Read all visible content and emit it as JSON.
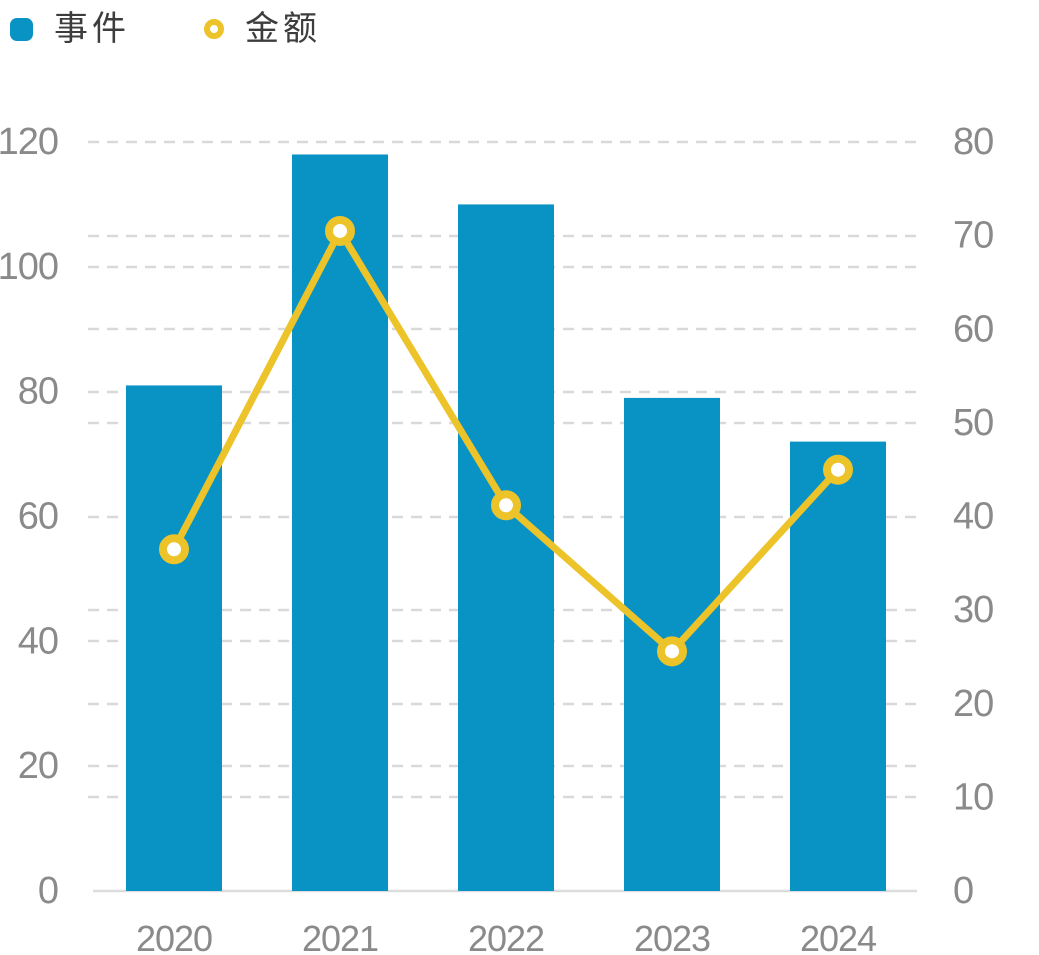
{
  "legend": {
    "items": [
      {
        "label": "事件",
        "series_type": "bar"
      },
      {
        "label": "金额",
        "series_type": "line"
      }
    ]
  },
  "chart_data": {
    "type": "bar",
    "subtype": "combo-bar-line-dual-axis",
    "categories": [
      "2020",
      "2021",
      "2022",
      "2023",
      "2024"
    ],
    "series": [
      {
        "name": "事件",
        "type": "bar",
        "axis": "left",
        "values": [
          81,
          118,
          110,
          79,
          72
        ]
      },
      {
        "name": "金额",
        "type": "line",
        "axis": "right",
        "values": [
          36.5,
          70.5,
          41.2,
          25.6,
          45
        ]
      }
    ],
    "title": "",
    "xlabel": "",
    "ylabel_left": "",
    "ylabel_right": "",
    "left_axis": {
      "min": 0,
      "max": 120,
      "step": 20,
      "ticks": [
        0,
        20,
        40,
        60,
        80,
        100,
        120
      ]
    },
    "right_axis": {
      "min": 0,
      "max": 80,
      "step": 10,
      "ticks": [
        0,
        10,
        20,
        30,
        40,
        50,
        60,
        70,
        80
      ]
    },
    "grid": {
      "visible": true,
      "style": "dashed",
      "for_both_axes": true
    },
    "legend_position": "top-left"
  },
  "colors": {
    "bar": "#0992c4",
    "line": "#edc32a",
    "marker_fill": "#ffffff",
    "grid": "#d9d9d9",
    "axis_line": "#dcdcdc",
    "axis_label": "#8a8a8a",
    "legend_text": "#3d3d3d",
    "background": "#ffffff"
  }
}
